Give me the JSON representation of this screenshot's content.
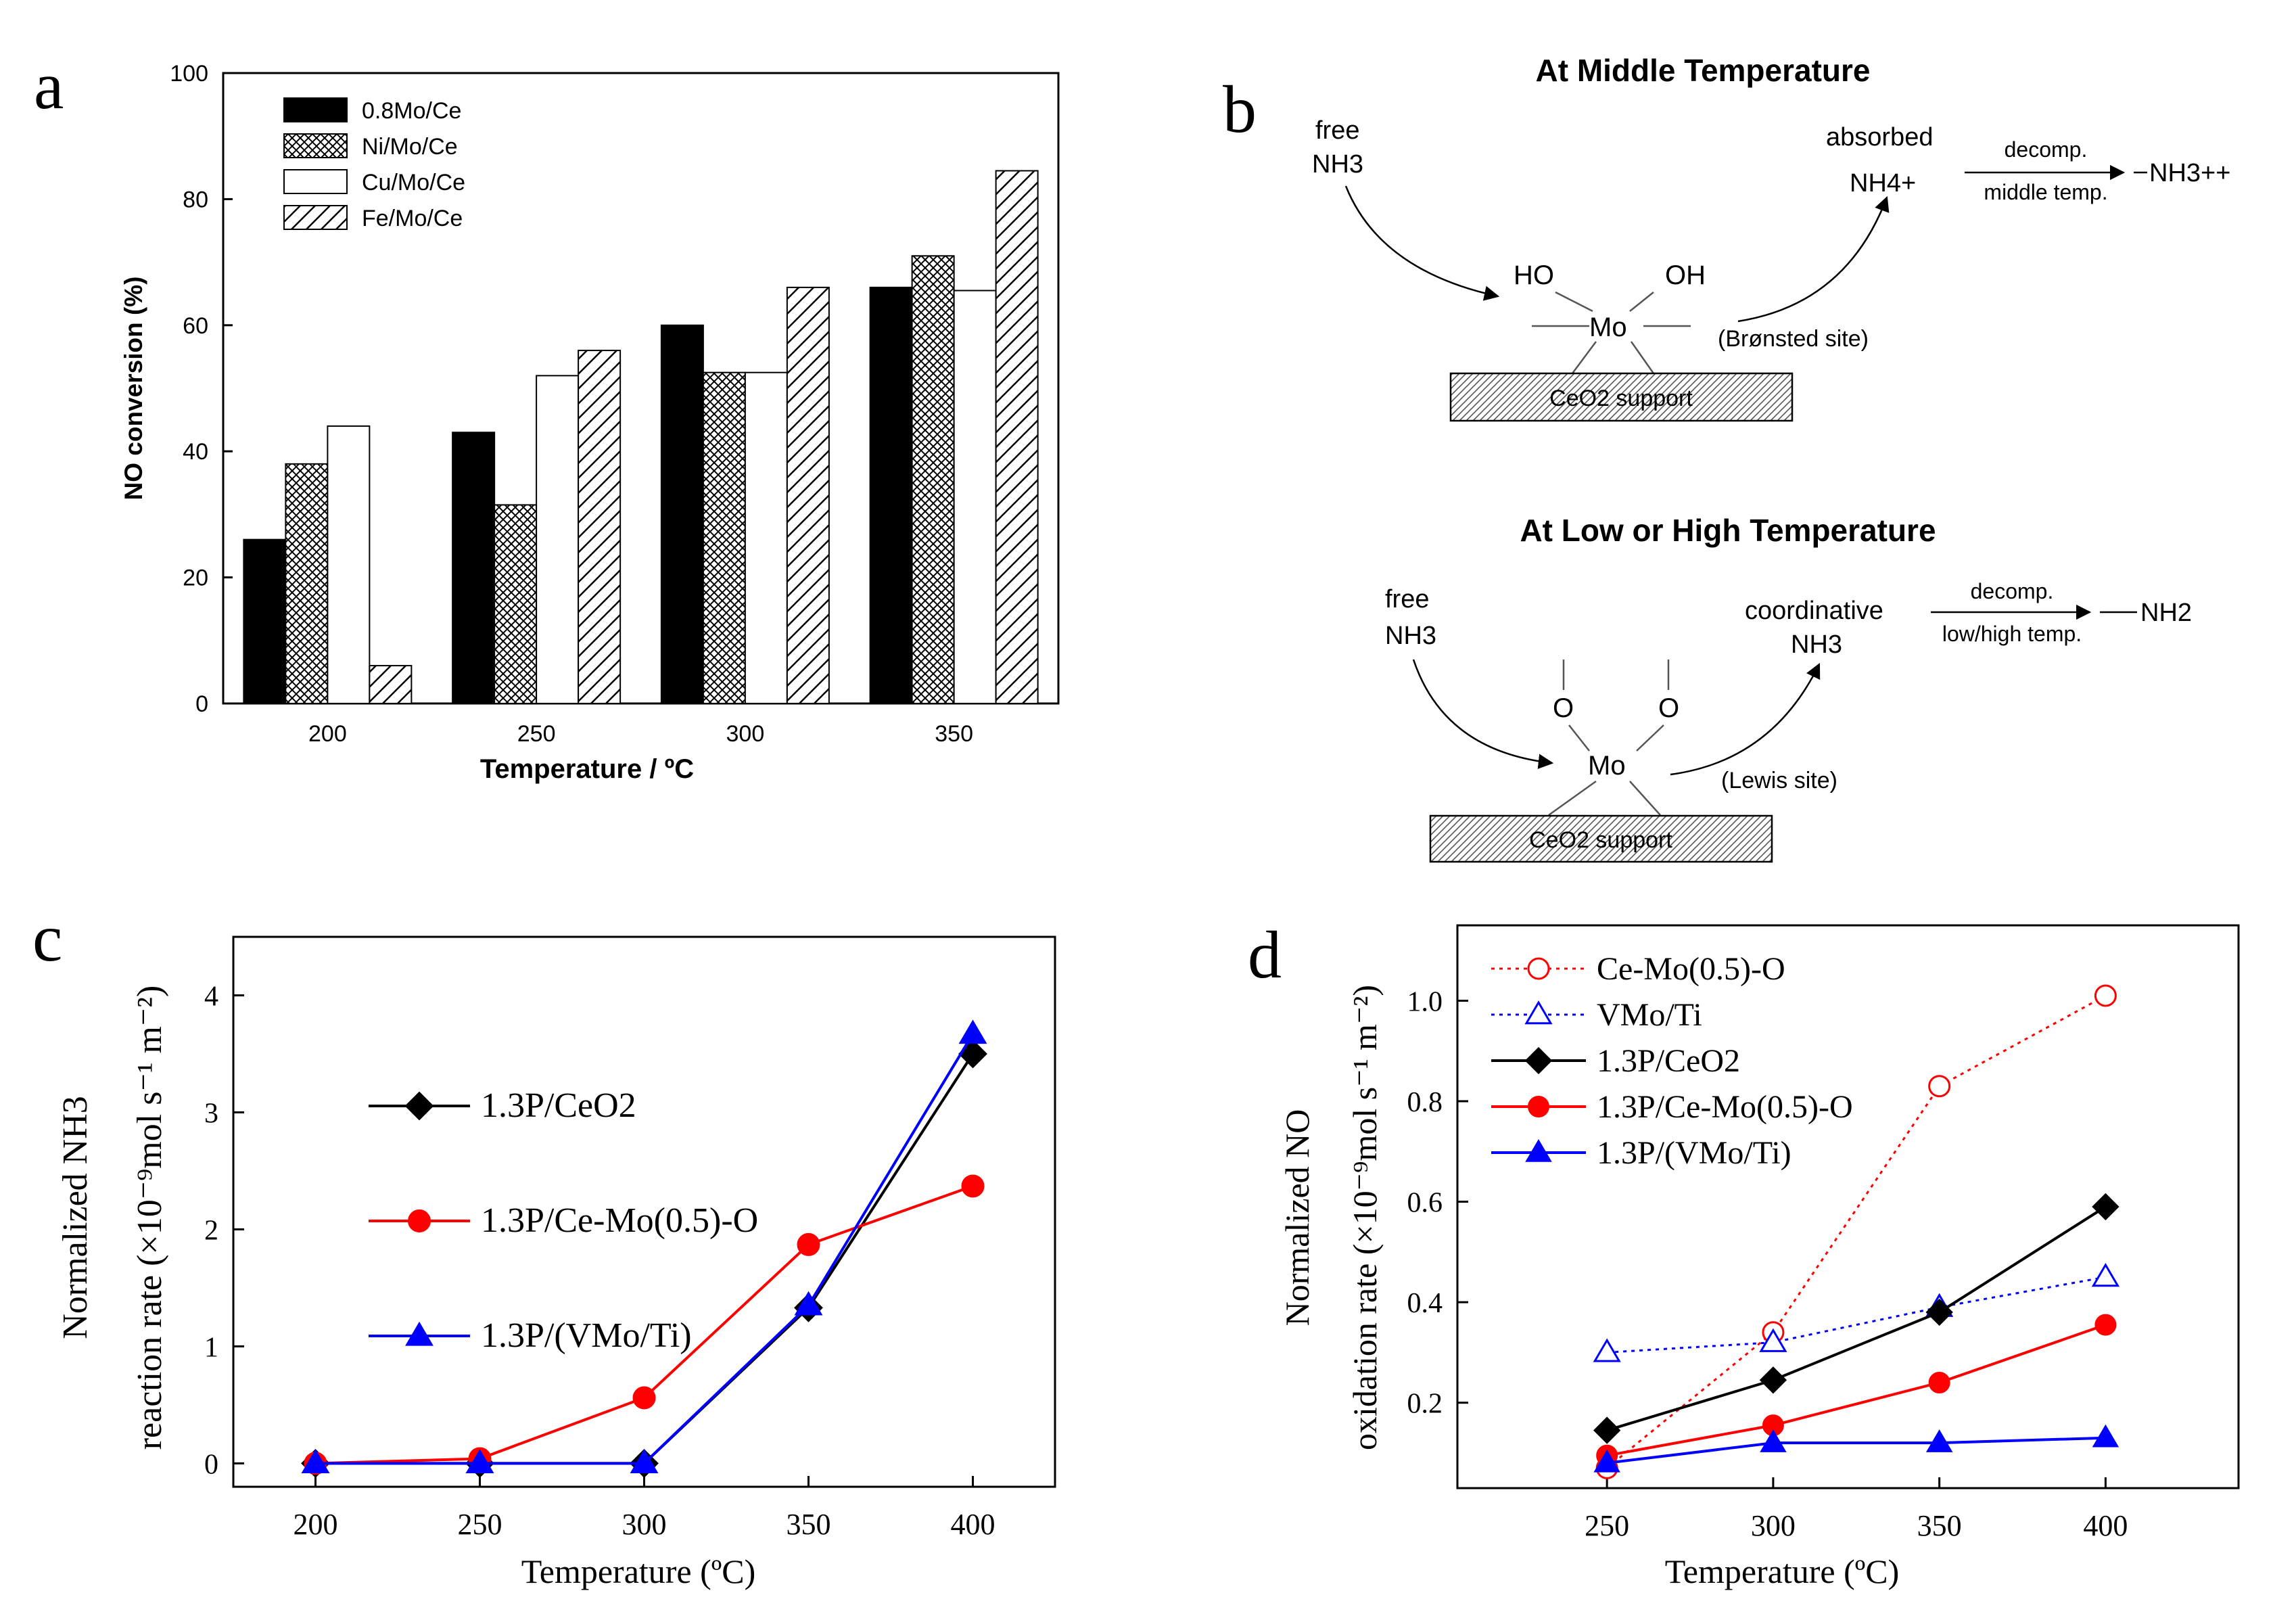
{
  "panel_letters": {
    "a": "a",
    "b": "b",
    "c": "c",
    "d": "d"
  },
  "chart_data": [
    {
      "id": "a",
      "type": "bar",
      "title": "",
      "xlabel": "Temperature / ºC",
      "ylabel": "NO conversion (%)",
      "categories": [
        "200",
        "250",
        "300",
        "350"
      ],
      "ylim": [
        0,
        100
      ],
      "yticks": [
        0,
        20,
        40,
        60,
        80,
        100
      ],
      "legend_position": "top-left",
      "series": [
        {
          "name": "0.8Mo/Ce",
          "fill": "solid-black",
          "values": [
            26,
            43,
            60,
            66
          ]
        },
        {
          "name": "Ni/Mo/Ce",
          "fill": "crosshatch",
          "values": [
            38,
            31.5,
            52.5,
            71
          ]
        },
        {
          "name": "Cu/Mo/Ce",
          "fill": "white",
          "values": [
            44,
            52,
            52.5,
            65.5
          ]
        },
        {
          "name": "Fe/Mo/Ce",
          "fill": "diagonal-hatch",
          "values": [
            6,
            56,
            66,
            84.5
          ]
        }
      ]
    },
    {
      "id": "c",
      "type": "line",
      "title": "",
      "xlabel": "Temperature (ºC)",
      "ylabel_line1": "Normalized NH3",
      "ylabel_line2": "reaction rate (×10⁻⁹mol s⁻¹ m⁻²)",
      "x": [
        200,
        250,
        300,
        350,
        400
      ],
      "xlim": [
        175,
        425
      ],
      "ylim": [
        -0.2,
        4.5
      ],
      "xticks": [
        200,
        250,
        300,
        350,
        400
      ],
      "yticks": [
        0,
        1,
        2,
        3,
        4
      ],
      "legend_position": "upper-left",
      "series": [
        {
          "name": "1.3P/CeO2",
          "color": "#000000",
          "marker": "diamond",
          "values": [
            0,
            0,
            0,
            1.33,
            3.5
          ]
        },
        {
          "name": "1.3P/Ce-Mo(0.5)-O",
          "color": "#ff0000",
          "marker": "circle",
          "values": [
            0,
            0.04,
            0.56,
            1.87,
            2.37
          ]
        },
        {
          "name": "1.3P/(VMo/Ti)",
          "color": "#0000ff",
          "marker": "triangle",
          "values": [
            0,
            0,
            0,
            1.35,
            3.67
          ]
        }
      ]
    },
    {
      "id": "d",
      "type": "line",
      "title": "",
      "xlabel": "Temperature (ºC)",
      "ylabel_line1": "Normalized NO",
      "ylabel_line2": "oxidation rate (×10⁻⁹mol s⁻¹ m⁻²)",
      "x": [
        250,
        300,
        350,
        400
      ],
      "xlim": [
        205,
        440
      ],
      "ylim": [
        0.03,
        1.15
      ],
      "xticks": [
        250,
        300,
        350,
        400
      ],
      "yticks": [
        0.2,
        0.4,
        0.6,
        0.8,
        1.0
      ],
      "legend_position": "upper-left",
      "series": [
        {
          "name": "Ce-Mo(0.5)-O",
          "color": "#ff0000",
          "marker": "circle-open",
          "dash": "dotted",
          "values": [
            0.07,
            0.34,
            0.83,
            1.01
          ]
        },
        {
          "name": "VMo/Ti",
          "color": "#0000ff",
          "marker": "triangle-open",
          "dash": "dotted",
          "values": [
            0.3,
            0.32,
            0.39,
            0.45
          ]
        },
        {
          "name": "1.3P/CeO2",
          "color": "#000000",
          "marker": "diamond",
          "dash": "solid",
          "values": [
            0.145,
            0.245,
            0.38,
            0.59
          ]
        },
        {
          "name": "1.3P/Ce-Mo(0.5)-O",
          "color": "#ff0000",
          "marker": "circle",
          "dash": "solid",
          "values": [
            0.095,
            0.155,
            0.24,
            0.355
          ]
        },
        {
          "name": "1.3P/(VMo/Ti)",
          "color": "#0000ff",
          "marker": "triangle",
          "dash": "solid",
          "values": [
            0.08,
            0.12,
            0.12,
            0.13
          ]
        }
      ]
    }
  ],
  "diagram_b": {
    "top_title": "At Middle Temperature",
    "top_free": "free",
    "top_nh3": "NH3",
    "top_absorbed": "absorbed",
    "top_nh4": "NH4+",
    "top_decomp": "decomp.",
    "top_middle_temp": "middle temp.",
    "top_product": "NH3++",
    "top_ho": "HO",
    "top_oh": "OH",
    "top_mo": "Mo",
    "top_site": "(Brønsted site)",
    "top_support": "CeO2 support",
    "bottom_title": "At Low or High Temperature",
    "bottom_free": "free",
    "bottom_nh3": "NH3",
    "bottom_coordinative": "coordinative",
    "bottom_nh3_coord": "NH3",
    "bottom_decomp": "decomp.",
    "bottom_lowhigh_temp": "low/high temp.",
    "bottom_product": "NH2",
    "bottom_o_left": "O",
    "bottom_o_right": "O",
    "bottom_mo": "Mo",
    "bottom_site": "(Lewis site)",
    "bottom_support": "CeO2 support"
  },
  "colors": {
    "black": "#000000",
    "red": "#ff0000",
    "blue": "#0000ff"
  }
}
